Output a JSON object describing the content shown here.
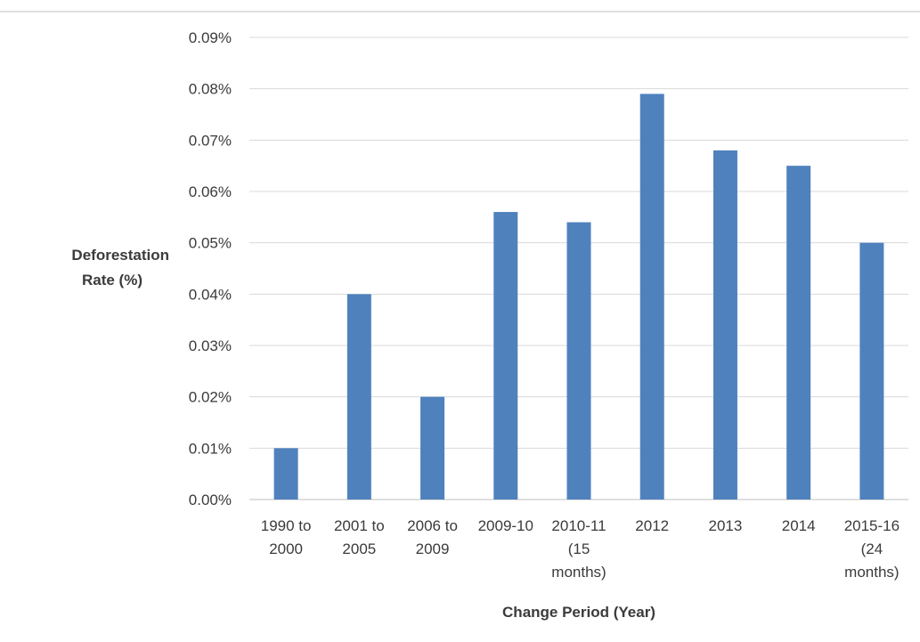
{
  "chart_data": {
    "type": "bar",
    "title": "",
    "xlabel": "Change Period (Year)",
    "ylabel_lines": [
      "Deforestation",
      "Rate (%)"
    ],
    "categories": [
      [
        "1990 to",
        "2000"
      ],
      [
        "2001 to",
        "2005"
      ],
      [
        "2006 to",
        "2009"
      ],
      [
        "2009-10"
      ],
      [
        "2010-11",
        "(15",
        "months)"
      ],
      [
        "2012"
      ],
      [
        "2013"
      ],
      [
        "2014"
      ],
      [
        "2015-16",
        "(24",
        "months)"
      ]
    ],
    "values": [
      0.01,
      0.04,
      0.02,
      0.056,
      0.054,
      0.079,
      0.068,
      0.065,
      0.05
    ],
    "ylim": [
      0,
      0.09
    ],
    "yticks": [
      "0.00%",
      "0.01%",
      "0.02%",
      "0.03%",
      "0.04%",
      "0.05%",
      "0.06%",
      "0.07%",
      "0.08%",
      "0.09%"
    ],
    "grid": true,
    "legend": "none",
    "bar_color": "#4f81bd"
  }
}
